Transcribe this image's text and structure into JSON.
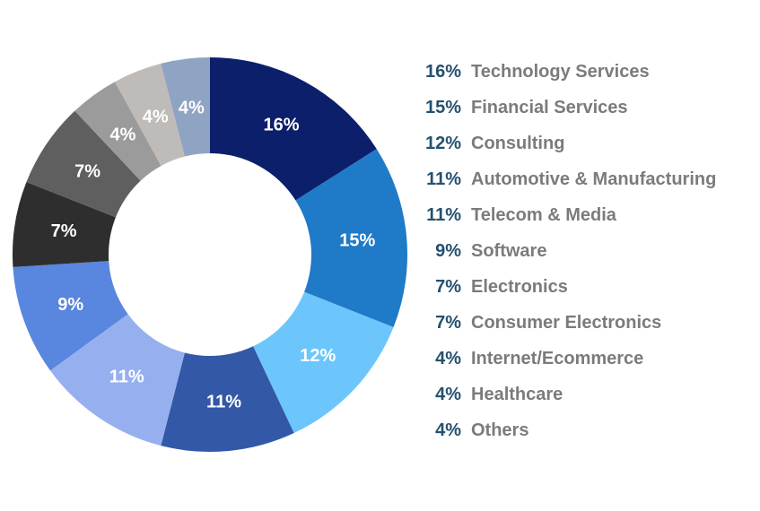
{
  "chart_data": {
    "type": "pie",
    "donut": true,
    "title": "",
    "categories": [
      "Technology Services",
      "Financial Services",
      "Consulting",
      "Automotive & Manufacturing",
      "Telecom & Media",
      "Software",
      "Electronics",
      "Consumer Electronics",
      "Internet/Ecommerce",
      "Healthcare",
      "Others"
    ],
    "values": [
      16,
      15,
      12,
      11,
      11,
      9,
      7,
      7,
      4,
      4,
      4
    ],
    "slice_labels": [
      "16%",
      "15%",
      "12%",
      "11%",
      "11%",
      "9%",
      "7%",
      "7%",
      "4%",
      "4%",
      "4%"
    ],
    "colors": [
      "#0c1f6b",
      "#1f7ac8",
      "#6cc6fb",
      "#3358a8",
      "#96b0ef",
      "#5986de",
      "#2e2e2e",
      "#5f5f5f",
      "#9b9b9b",
      "#bfbbb8",
      "#8fa3c2"
    ],
    "legend_placement": "right",
    "label_color": "#ffffff",
    "legend_percent_color": "#25506e",
    "legend_text_color": "#7b7b7b"
  },
  "legend": {
    "items": [
      {
        "pct": "16%",
        "name": "Technology Services"
      },
      {
        "pct": "15%",
        "name": "Financial Services"
      },
      {
        "pct": "12%",
        "name": "Consulting"
      },
      {
        "pct": "11%",
        "name": "Automotive & Manufacturing"
      },
      {
        "pct": "11%",
        "name": "Telecom & Media"
      },
      {
        "pct": "9%",
        "name": "Software"
      },
      {
        "pct": "7%",
        "name": "Electronics"
      },
      {
        "pct": "7%",
        "name": "Consumer Electronics"
      },
      {
        "pct": "4%",
        "name": "Internet/Ecommerce"
      },
      {
        "pct": "4%",
        "name": "Healthcare"
      },
      {
        "pct": "4%",
        "name": "Others"
      }
    ]
  }
}
